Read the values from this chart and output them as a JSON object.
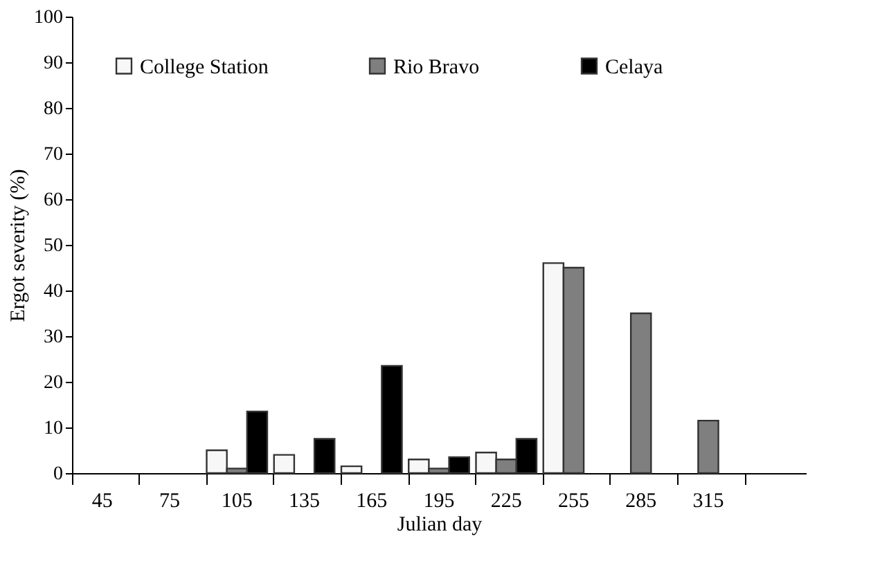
{
  "chart_data": {
    "type": "bar",
    "xlabel": "Julian day",
    "ylabel": "Ergot severity (%)",
    "categories": [
      "45",
      "75",
      "105",
      "135",
      "165",
      "195",
      "225",
      "255",
      "285",
      "315",
      null
    ],
    "series": [
      {
        "name": "College Station",
        "color": "#f7f7f7",
        "values": [
          null,
          null,
          5,
          4,
          1.5,
          3,
          4.5,
          46,
          null,
          null,
          null
        ]
      },
      {
        "name": "Rio Bravo",
        "color": "#7f7f7f",
        "values": [
          null,
          null,
          1,
          null,
          null,
          1,
          3,
          45,
          35,
          11.5,
          null
        ]
      },
      {
        "name": "Celaya",
        "color": "#000000",
        "values": [
          null,
          null,
          13.5,
          7.5,
          23.5,
          3.5,
          7.5,
          null,
          null,
          null,
          null
        ]
      }
    ],
    "ylim": [
      0,
      100
    ],
    "yticks": [
      0,
      10,
      20,
      30,
      40,
      50,
      60,
      70,
      80,
      90,
      100
    ],
    "grid": false,
    "legend": "top"
  }
}
